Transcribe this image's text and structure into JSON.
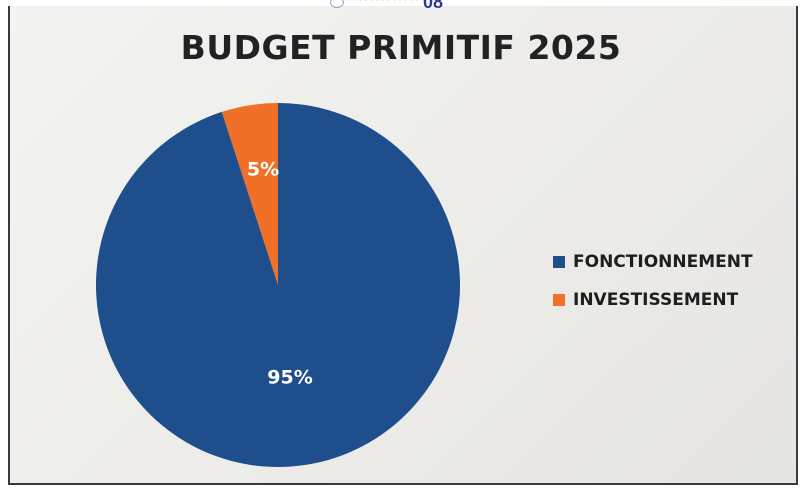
{
  "header": {
    "logo_number": "08"
  },
  "chart_data": {
    "type": "pie",
    "title": "BUDGET PRIMITIF 2025",
    "slices": [
      {
        "name": "FONCTIONNEMENT",
        "value": 95,
        "label": "95%",
        "color": "#1f4e8c"
      },
      {
        "name": "INVESTISSEMENT",
        "value": 5,
        "label": "5%",
        "color": "#f07027"
      }
    ],
    "legend_position": "right"
  }
}
